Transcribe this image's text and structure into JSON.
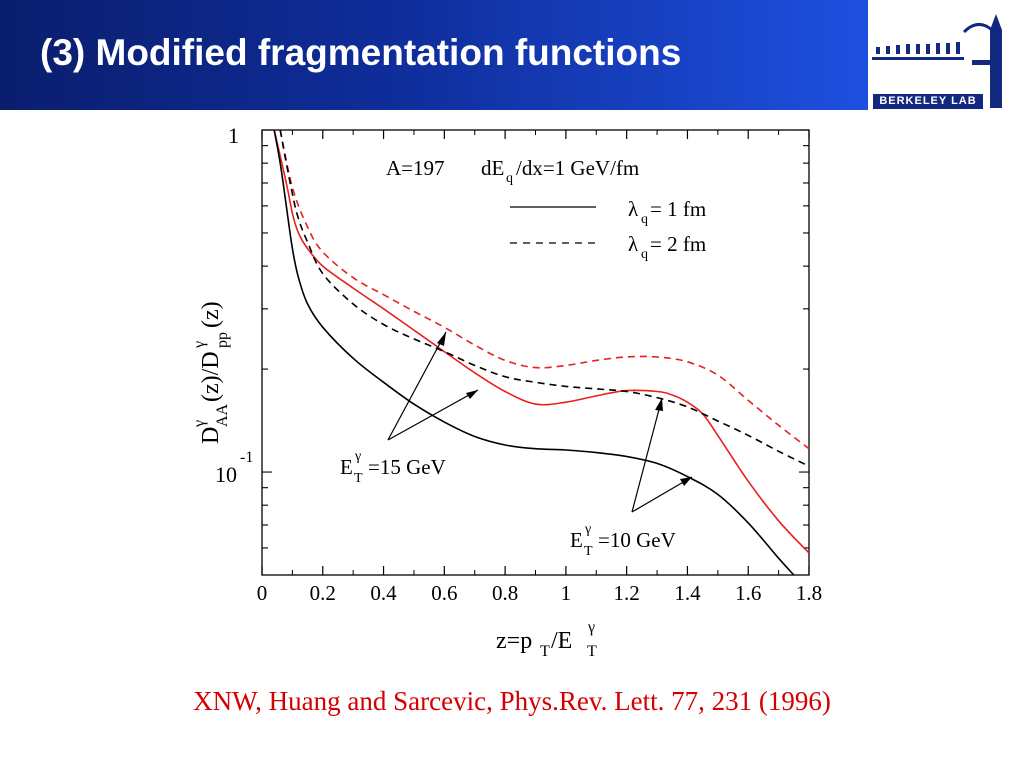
{
  "slide": {
    "title": "(3) Modified fragmentation functions",
    "logo_text": "BERKELEY LAB",
    "citation": "XNW, Huang and Sarcevic, Phys.Rev. Lett. 77, 231 (1996)"
  },
  "colors": {
    "title_bar": "#0f2d9a",
    "citation": "#d40000",
    "series_red": "#e8201e",
    "series_black": "#000000"
  },
  "chart_data": {
    "type": "line",
    "header": {
      "A": "A=197",
      "dE": "dE",
      "dE_sub": "q",
      "dE_rest": "/dx=1 GeV/fm"
    },
    "legend": [
      {
        "style": "solid",
        "lambda_sub": "q",
        "text": "= 1 fm"
      },
      {
        "style": "dashed",
        "lambda_sub": "q",
        "text": "= 2 fm"
      }
    ],
    "xlabel": "z=p_T/E_T^γ",
    "ylabel": "D^γ_AA(z)/D^γ_pp(z)",
    "xlim": [
      0,
      1.8
    ],
    "ylim": [
      0.05,
      1
    ],
    "y_scale": "log",
    "x_ticks": [
      "0",
      "0.2",
      "0.4",
      "0.6",
      "0.8",
      "1",
      "1.2",
      "1.4",
      "1.6",
      "1.8"
    ],
    "y_tick_labels": [
      "1",
      "10",
      "-1"
    ],
    "annotations": [
      {
        "label_main": "E",
        "label_sub": "T",
        "label_sup": "γ",
        "label_rest": "=15 GeV"
      },
      {
        "label_main": "E",
        "label_sub": "T",
        "label_sup": "γ",
        "label_rest": "=10 GeV"
      }
    ],
    "series": [
      {
        "ET": "15 GeV",
        "lambda": "1 fm",
        "color": "red",
        "dash": false,
        "x": [
          0.04,
          0.08,
          0.1,
          0.12,
          0.15,
          0.2,
          0.3,
          0.4,
          0.5,
          0.6,
          0.7,
          0.8,
          0.9,
          1.0,
          1.1,
          1.2,
          1.3,
          1.35,
          1.4,
          1.45,
          1.5,
          1.6,
          1.7,
          1.8
        ],
        "y": [
          1.0,
          0.7,
          0.57,
          0.5,
          0.45,
          0.4,
          0.345,
          0.3,
          0.26,
          0.225,
          0.195,
          0.172,
          0.158,
          0.16,
          0.167,
          0.173,
          0.172,
          0.168,
          0.16,
          0.148,
          0.128,
          0.094,
          0.072,
          0.058
        ]
      },
      {
        "ET": "15 GeV",
        "lambda": "2 fm",
        "color": "red",
        "dash": true,
        "x": [
          0.06,
          0.1,
          0.15,
          0.2,
          0.3,
          0.4,
          0.5,
          0.6,
          0.7,
          0.8,
          0.9,
          1.0,
          1.1,
          1.2,
          1.3,
          1.4,
          1.5,
          1.6,
          1.7,
          1.8
        ],
        "y": [
          1.0,
          0.68,
          0.52,
          0.44,
          0.37,
          0.33,
          0.295,
          0.265,
          0.235,
          0.212,
          0.202,
          0.205,
          0.212,
          0.217,
          0.217,
          0.21,
          0.192,
          0.162,
          0.137,
          0.117
        ]
      },
      {
        "ET": "10 GeV",
        "lambda": "1 fm",
        "color": "black",
        "dash": false,
        "x": [
          0.04,
          0.06,
          0.08,
          0.1,
          0.12,
          0.15,
          0.2,
          0.3,
          0.4,
          0.5,
          0.6,
          0.7,
          0.8,
          0.9,
          1.0,
          1.1,
          1.2,
          1.3,
          1.4,
          1.5,
          1.6,
          1.7,
          1.75
        ],
        "y": [
          1.0,
          0.8,
          0.6,
          0.45,
          0.37,
          0.31,
          0.265,
          0.215,
          0.183,
          0.158,
          0.14,
          0.127,
          0.12,
          0.117,
          0.116,
          0.114,
          0.111,
          0.106,
          0.097,
          0.086,
          0.071,
          0.056,
          0.048
        ]
      },
      {
        "ET": "10 GeV",
        "lambda": "2 fm",
        "color": "black",
        "dash": true,
        "x": [
          0.06,
          0.08,
          0.1,
          0.12,
          0.15,
          0.2,
          0.3,
          0.4,
          0.5,
          0.6,
          0.7,
          0.8,
          0.9,
          1.0,
          1.1,
          1.2,
          1.3,
          1.4,
          1.5,
          1.6,
          1.7,
          1.8
        ],
        "y": [
          1.0,
          0.8,
          0.65,
          0.55,
          0.47,
          0.38,
          0.31,
          0.27,
          0.245,
          0.225,
          0.205,
          0.19,
          0.183,
          0.178,
          0.175,
          0.172,
          0.165,
          0.155,
          0.141,
          0.128,
          0.115,
          0.104
        ]
      }
    ]
  }
}
